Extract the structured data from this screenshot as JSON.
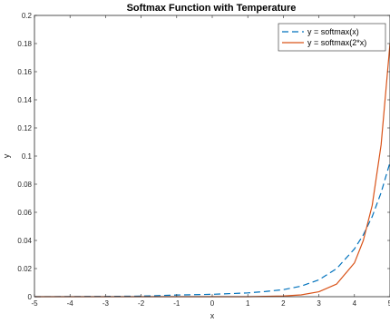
{
  "chart_data": {
    "type": "line",
    "title": "Softmax Function with Temperature",
    "xlabel": "x",
    "ylabel": "y",
    "xlim": [
      -5,
      5
    ],
    "ylim": [
      0,
      0.2
    ],
    "x_ticks": [
      -5,
      -4,
      -3,
      -2,
      -1,
      0,
      1,
      2,
      3,
      4,
      5
    ],
    "x_tick_labels": [
      "-5",
      "-4",
      "-3",
      "-2",
      "-1",
      "0",
      "1",
      "2",
      "3",
      "4",
      "5"
    ],
    "y_ticks": [
      0,
      0.02,
      0.04,
      0.06,
      0.08,
      0.1,
      0.12,
      0.14,
      0.16,
      0.18,
      0.2
    ],
    "y_tick_labels": [
      "0",
      "0.02",
      "0.04",
      "0.06",
      "0.08",
      "0.1",
      "0.12",
      "0.14",
      "0.16",
      "0.18",
      "0.2"
    ],
    "grid": false,
    "legend_position": "top-right",
    "series": [
      {
        "name": "y = softmax(x)",
        "color": "#0072BD",
        "style": "dashed",
        "x": [
          -5,
          -4,
          -3,
          -2,
          -1,
          0,
          1,
          1.5,
          2,
          2.5,
          3,
          3.5,
          4,
          4.25,
          4.5,
          4.75,
          5
        ],
        "values": [
          0.0,
          0.0001,
          0.0002,
          0.0004,
          0.0012,
          0.0017,
          0.0027,
          0.0037,
          0.005,
          0.0075,
          0.012,
          0.02,
          0.034,
          0.044,
          0.057,
          0.074,
          0.0955
        ]
      },
      {
        "name": "y = softmax(2*x)",
        "color": "#D95319",
        "style": "solid",
        "x": [
          -5,
          -4,
          -3,
          -2,
          -1,
          0,
          1,
          2,
          2.5,
          3,
          3.5,
          4,
          4.25,
          4.5,
          4.75,
          5
        ],
        "values": [
          0.0,
          0.0,
          0.0,
          0.0,
          0.0,
          0.0,
          0.0,
          0.0005,
          0.0013,
          0.0035,
          0.009,
          0.024,
          0.04,
          0.065,
          0.108,
          0.18
        ]
      }
    ]
  }
}
